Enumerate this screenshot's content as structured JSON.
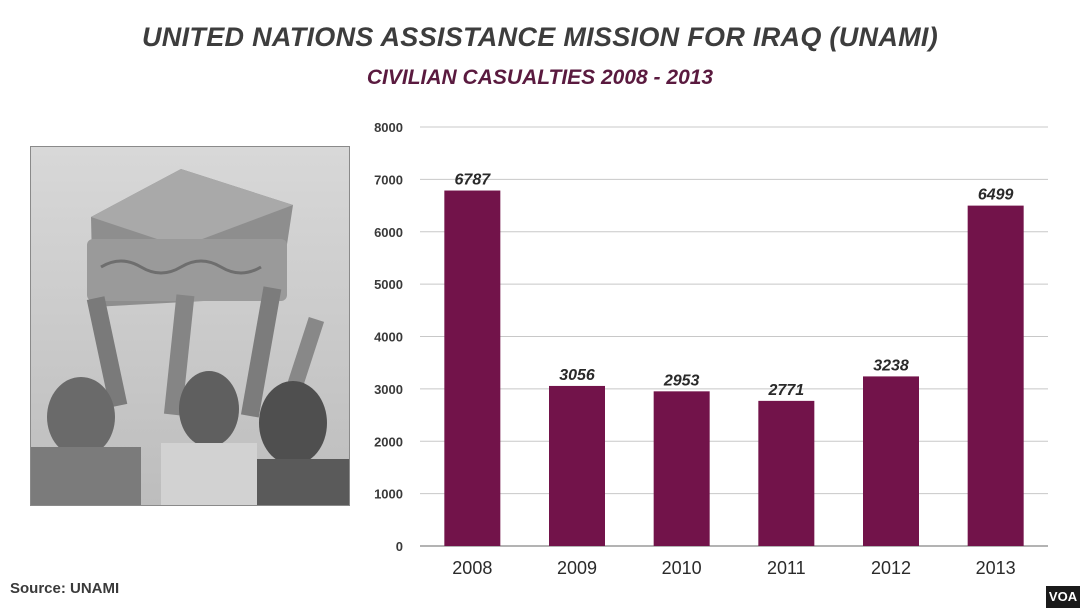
{
  "header": {
    "title": "UNITED NATIONS ASSISTANCE MISSION FOR IRAQ (UNAMI)",
    "subtitle": "CIVILIAN CASUALTIES  2008 - 2013"
  },
  "source": "Source: UNAMI",
  "logo": "VOA",
  "colors": {
    "bar": "#72134a",
    "grid": "#c8c8c8",
    "title": "#3d3d3d",
    "subtitle": "#5a1a3f"
  },
  "chart_data": {
    "type": "bar",
    "title": "CIVILIAN CASUALTIES  2008 - 2013",
    "categories": [
      "2008",
      "2009",
      "2010",
      "2011",
      "2012",
      "2013"
    ],
    "values": [
      6787,
      3056,
      2953,
      2771,
      3238,
      6499
    ],
    "value_labels": [
      "6787",
      "3056",
      "2953",
      "2771",
      "3238",
      "6499"
    ],
    "yticks": [
      0,
      1000,
      2000,
      3000,
      4000,
      5000,
      6000,
      7000,
      8000
    ],
    "ytick_labels": [
      "0",
      "1000",
      "2000",
      "3000",
      "4000",
      "5000",
      "6000",
      "7000",
      "8000"
    ],
    "ylim": [
      0,
      8000
    ],
    "xlabel": "",
    "ylabel": "",
    "grid": true,
    "legend": "none"
  }
}
